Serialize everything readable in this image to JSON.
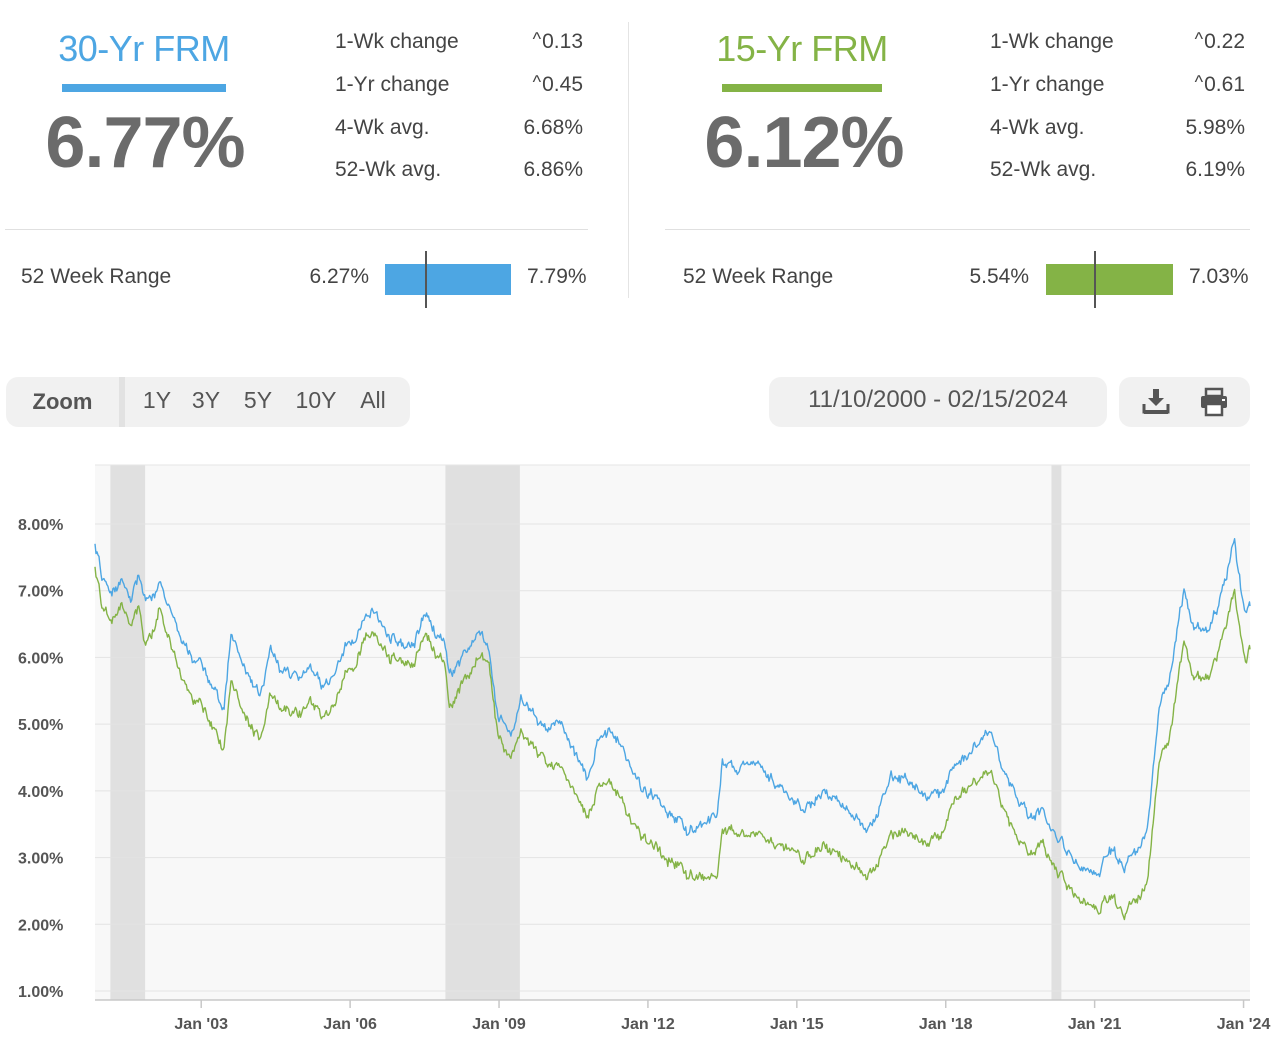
{
  "colors": {
    "thirty": "#4da6e3",
    "fifteen": "#84b346",
    "big_number": "#6b6b6b",
    "recession": "#e0e0e0",
    "plot_bg": "#f8f8f8"
  },
  "thirty": {
    "name": "30-Yr FRM",
    "rate": "6.77%",
    "stats": [
      {
        "label": "1-Wk change",
        "value": "0.13",
        "arrow": "up"
      },
      {
        "label": "1-Yr change",
        "value": "0.45",
        "arrow": "up"
      },
      {
        "label": "4-Wk avg.",
        "value": "6.68%"
      },
      {
        "label": "52-Wk avg.",
        "value": "6.86%"
      }
    ],
    "range_label": "52 Week Range",
    "range_low": "6.27%",
    "range_high": "7.79%",
    "range_current": 6.77
  },
  "fifteen": {
    "name": "15-Yr FRM",
    "rate": "6.12%",
    "stats": [
      {
        "label": "1-Wk change",
        "value": "0.22",
        "arrow": "up"
      },
      {
        "label": "1-Yr change",
        "value": "0.61",
        "arrow": "up"
      },
      {
        "label": "4-Wk avg.",
        "value": "5.98%"
      },
      {
        "label": "52-Wk avg.",
        "value": "6.19%"
      }
    ],
    "range_label": "52 Week Range",
    "range_low": "5.54%",
    "range_high": "7.03%",
    "range_current": 6.12
  },
  "toolbar": {
    "zoom_label": "Zoom",
    "zoom_options": [
      "1Y",
      "3Y",
      "5Y",
      "10Y",
      "All"
    ],
    "date_range": "11/10/2000 - 02/15/2024",
    "download_icon": "download-icon",
    "print_icon": "print-icon"
  },
  "chart_data": {
    "type": "line",
    "x_start": 2000.86,
    "x_end": 2024.13,
    "ylim": [
      1.0,
      8.0
    ],
    "y_ticks": [
      "1.00%",
      "2.00%",
      "3.00%",
      "4.00%",
      "5.00%",
      "6.00%",
      "7.00%",
      "8.00%"
    ],
    "x_ticks": [
      {
        "label": "Jan '03",
        "year": 2003.0
      },
      {
        "label": "Jan '06",
        "year": 2006.0
      },
      {
        "label": "Jan '09",
        "year": 2009.0
      },
      {
        "label": "Jan '12",
        "year": 2012.0
      },
      {
        "label": "Jan '15",
        "year": 2015.0
      },
      {
        "label": "Jan '18",
        "year": 2018.0
      },
      {
        "label": "Jan '21",
        "year": 2021.0
      },
      {
        "label": "Jan '24",
        "year": 2024.0
      }
    ],
    "recessions": [
      [
        2001.17,
        2001.87
      ],
      [
        2007.92,
        2009.42
      ],
      [
        2020.13,
        2020.33
      ]
    ],
    "series": [
      {
        "key": "thirty",
        "points": [
          [
            2000.86,
            7.75
          ],
          [
            2001.0,
            7.2
          ],
          [
            2001.2,
            6.95
          ],
          [
            2001.4,
            7.15
          ],
          [
            2001.6,
            6.9
          ],
          [
            2001.75,
            7.2
          ],
          [
            2001.85,
            6.8
          ],
          [
            2002.0,
            6.85
          ],
          [
            2002.15,
            7.1
          ],
          [
            2002.4,
            6.7
          ],
          [
            2002.6,
            6.2
          ],
          [
            2002.8,
            6.0
          ],
          [
            2003.0,
            5.9
          ],
          [
            2003.2,
            5.6
          ],
          [
            2003.45,
            5.2
          ],
          [
            2003.6,
            6.3
          ],
          [
            2003.85,
            5.9
          ],
          [
            2004.0,
            5.7
          ],
          [
            2004.2,
            5.45
          ],
          [
            2004.4,
            6.2
          ],
          [
            2004.6,
            5.8
          ],
          [
            2004.8,
            5.75
          ],
          [
            2005.0,
            5.7
          ],
          [
            2005.2,
            5.9
          ],
          [
            2005.45,
            5.55
          ],
          [
            2005.7,
            5.8
          ],
          [
            2005.9,
            6.2
          ],
          [
            2006.1,
            6.3
          ],
          [
            2006.3,
            6.6
          ],
          [
            2006.5,
            6.75
          ],
          [
            2006.8,
            6.3
          ],
          [
            2007.0,
            6.2
          ],
          [
            2007.3,
            6.2
          ],
          [
            2007.5,
            6.7
          ],
          [
            2007.7,
            6.4
          ],
          [
            2007.9,
            6.2
          ],
          [
            2008.0,
            5.7
          ],
          [
            2008.2,
            5.9
          ],
          [
            2008.45,
            6.2
          ],
          [
            2008.6,
            6.4
          ],
          [
            2008.8,
            6.1
          ],
          [
            2008.95,
            5.2
          ],
          [
            2009.1,
            5.0
          ],
          [
            2009.3,
            4.85
          ],
          [
            2009.45,
            5.4
          ],
          [
            2009.7,
            5.1
          ],
          [
            2009.9,
            4.9
          ],
          [
            2010.1,
            5.05
          ],
          [
            2010.3,
            5.0
          ],
          [
            2010.5,
            4.6
          ],
          [
            2010.8,
            4.2
          ],
          [
            2011.0,
            4.8
          ],
          [
            2011.3,
            4.9
          ],
          [
            2011.6,
            4.4
          ],
          [
            2011.9,
            4.0
          ],
          [
            2012.2,
            3.9
          ],
          [
            2012.5,
            3.6
          ],
          [
            2012.8,
            3.4
          ],
          [
            2013.1,
            3.5
          ],
          [
            2013.4,
            3.6
          ],
          [
            2013.5,
            4.4
          ],
          [
            2013.8,
            4.3
          ],
          [
            2014.0,
            4.5
          ],
          [
            2014.3,
            4.3
          ],
          [
            2014.6,
            4.1
          ],
          [
            2014.9,
            3.85
          ],
          [
            2015.1,
            3.7
          ],
          [
            2015.5,
            4.0
          ],
          [
            2015.8,
            3.85
          ],
          [
            2016.1,
            3.65
          ],
          [
            2016.5,
            3.45
          ],
          [
            2016.9,
            4.2
          ],
          [
            2017.2,
            4.2
          ],
          [
            2017.6,
            3.9
          ],
          [
            2017.9,
            3.95
          ],
          [
            2018.2,
            4.4
          ],
          [
            2018.5,
            4.6
          ],
          [
            2018.85,
            4.9
          ],
          [
            2019.1,
            4.45
          ],
          [
            2019.4,
            3.9
          ],
          [
            2019.7,
            3.6
          ],
          [
            2019.95,
            3.7
          ],
          [
            2020.2,
            3.4
          ],
          [
            2020.5,
            3.05
          ],
          [
            2020.9,
            2.75
          ],
          [
            2021.1,
            2.75
          ],
          [
            2021.3,
            3.15
          ],
          [
            2021.6,
            2.85
          ],
          [
            2021.85,
            3.05
          ],
          [
            2022.05,
            3.4
          ],
          [
            2022.3,
            5.2
          ],
          [
            2022.5,
            5.6
          ],
          [
            2022.8,
            7.05
          ],
          [
            2023.0,
            6.4
          ],
          [
            2023.3,
            6.4
          ],
          [
            2023.55,
            6.9
          ],
          [
            2023.82,
            7.79
          ],
          [
            2023.95,
            7.0
          ],
          [
            2024.05,
            6.65
          ],
          [
            2024.13,
            6.77
          ]
        ]
      },
      {
        "key": "fifteen",
        "points": [
          [
            2000.86,
            7.4
          ],
          [
            2001.0,
            6.75
          ],
          [
            2001.2,
            6.55
          ],
          [
            2001.4,
            6.8
          ],
          [
            2001.6,
            6.5
          ],
          [
            2001.75,
            6.75
          ],
          [
            2001.85,
            6.1
          ],
          [
            2002.0,
            6.3
          ],
          [
            2002.15,
            6.7
          ],
          [
            2002.4,
            6.2
          ],
          [
            2002.6,
            5.65
          ],
          [
            2002.8,
            5.4
          ],
          [
            2003.0,
            5.3
          ],
          [
            2003.2,
            5.0
          ],
          [
            2003.45,
            4.6
          ],
          [
            2003.6,
            5.6
          ],
          [
            2003.85,
            5.2
          ],
          [
            2004.0,
            5.0
          ],
          [
            2004.2,
            4.8
          ],
          [
            2004.4,
            5.5
          ],
          [
            2004.6,
            5.25
          ],
          [
            2004.8,
            5.15
          ],
          [
            2005.0,
            5.15
          ],
          [
            2005.2,
            5.4
          ],
          [
            2005.45,
            5.1
          ],
          [
            2005.7,
            5.35
          ],
          [
            2005.9,
            5.8
          ],
          [
            2006.1,
            5.9
          ],
          [
            2006.3,
            6.3
          ],
          [
            2006.5,
            6.4
          ],
          [
            2006.8,
            6.0
          ],
          [
            2007.0,
            5.95
          ],
          [
            2007.3,
            5.9
          ],
          [
            2007.5,
            6.4
          ],
          [
            2007.7,
            6.1
          ],
          [
            2007.9,
            5.9
          ],
          [
            2008.0,
            5.2
          ],
          [
            2008.2,
            5.5
          ],
          [
            2008.45,
            5.8
          ],
          [
            2008.6,
            6.0
          ],
          [
            2008.8,
            5.9
          ],
          [
            2008.95,
            4.95
          ],
          [
            2009.1,
            4.6
          ],
          [
            2009.3,
            4.55
          ],
          [
            2009.45,
            4.9
          ],
          [
            2009.7,
            4.6
          ],
          [
            2009.9,
            4.45
          ],
          [
            2010.1,
            4.4
          ],
          [
            2010.3,
            4.35
          ],
          [
            2010.5,
            4.0
          ],
          [
            2010.8,
            3.6
          ],
          [
            2011.0,
            4.1
          ],
          [
            2011.3,
            4.1
          ],
          [
            2011.6,
            3.6
          ],
          [
            2011.9,
            3.3
          ],
          [
            2012.2,
            3.15
          ],
          [
            2012.5,
            2.9
          ],
          [
            2012.8,
            2.75
          ],
          [
            2013.1,
            2.7
          ],
          [
            2013.4,
            2.65
          ],
          [
            2013.5,
            3.4
          ],
          [
            2013.8,
            3.35
          ],
          [
            2014.0,
            3.4
          ],
          [
            2014.3,
            3.3
          ],
          [
            2014.6,
            3.2
          ],
          [
            2014.9,
            3.1
          ],
          [
            2015.1,
            2.95
          ],
          [
            2015.5,
            3.2
          ],
          [
            2015.8,
            3.05
          ],
          [
            2016.1,
            2.9
          ],
          [
            2016.5,
            2.75
          ],
          [
            2016.9,
            3.35
          ],
          [
            2017.2,
            3.4
          ],
          [
            2017.6,
            3.2
          ],
          [
            2017.9,
            3.3
          ],
          [
            2018.2,
            3.9
          ],
          [
            2018.5,
            4.1
          ],
          [
            2018.85,
            4.3
          ],
          [
            2019.1,
            3.9
          ],
          [
            2019.4,
            3.3
          ],
          [
            2019.7,
            3.05
          ],
          [
            2019.95,
            3.2
          ],
          [
            2020.2,
            2.9
          ],
          [
            2020.5,
            2.55
          ],
          [
            2020.9,
            2.25
          ],
          [
            2021.1,
            2.2
          ],
          [
            2021.3,
            2.45
          ],
          [
            2021.6,
            2.15
          ],
          [
            2021.85,
            2.3
          ],
          [
            2022.05,
            2.6
          ],
          [
            2022.3,
            4.4
          ],
          [
            2022.5,
            4.7
          ],
          [
            2022.8,
            6.3
          ],
          [
            2023.0,
            5.65
          ],
          [
            2023.3,
            5.7
          ],
          [
            2023.55,
            6.2
          ],
          [
            2023.82,
            7.03
          ],
          [
            2023.95,
            6.3
          ],
          [
            2024.05,
            5.9
          ],
          [
            2024.13,
            6.12
          ]
        ]
      }
    ]
  }
}
